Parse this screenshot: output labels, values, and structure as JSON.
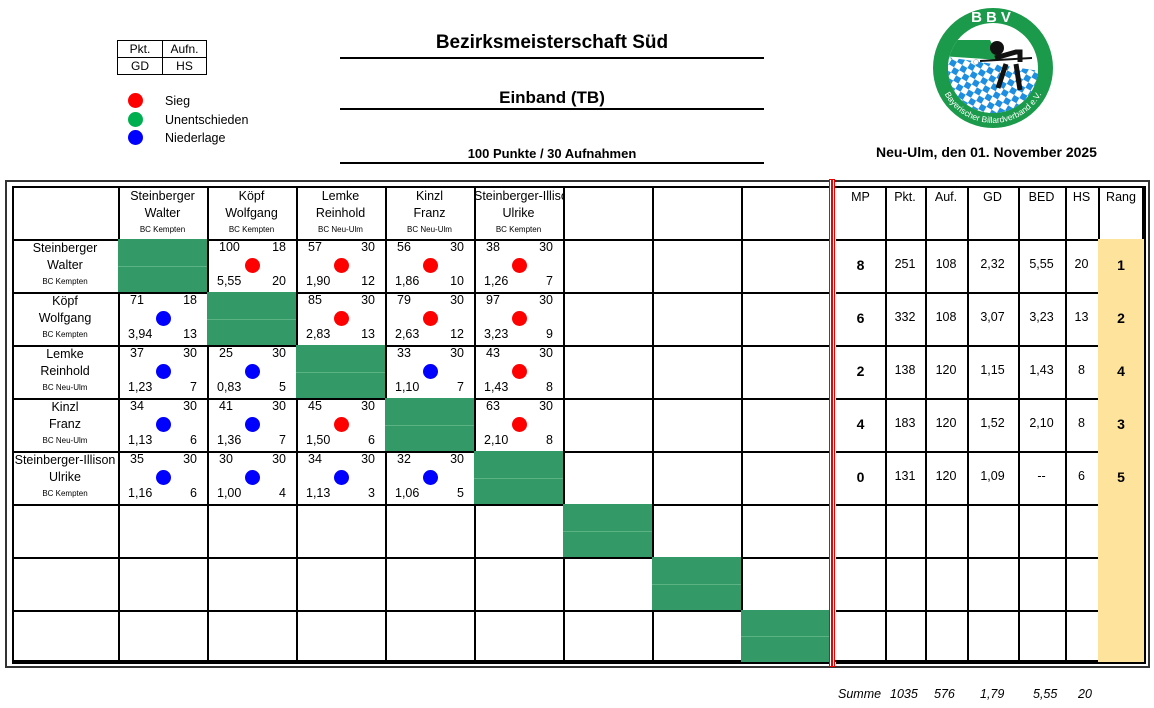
{
  "legend": {
    "box": {
      "r1c1": "Pkt.",
      "r1c2": "Aufn.",
      "r2c1": "GD",
      "r2c2": "HS"
    },
    "items": [
      {
        "label": "Sieg",
        "color": "#ff0000"
      },
      {
        "label": "Unentschieden",
        "color": "#00b050"
      },
      {
        "label": "Niederlage",
        "color": "#0000ff"
      }
    ]
  },
  "header": {
    "title": "Bezirksmeisterschaft Süd",
    "discipline": "Einband (TB)",
    "conditions": "100 Punkte / 30 Aufnahmen",
    "place_date": "Neu-Ulm, den 01. November 2025"
  },
  "logo": {
    "top_text": "BBV",
    "ring_text": "Bayerischer Billardverband e.V.",
    "green": "#1a9a4a",
    "blue": "#1e8ee0"
  },
  "colors": {
    "win": "#ff0000",
    "draw": "#00b050",
    "loss": "#0000ff",
    "diagonal": "#339966",
    "rank_bg": "#fde39c",
    "separator": "#ee0000"
  },
  "players": [
    {
      "first": "Steinberger",
      "last": "Walter",
      "club": "BC Kempten"
    },
    {
      "first": "Köpf",
      "last": "Wolfgang",
      "club": "BC Kempten"
    },
    {
      "first": "Lemke",
      "last": "Reinhold",
      "club": "BC Neu-Ulm"
    },
    {
      "first": "Kinzl",
      "last": "Franz",
      "club": "BC Neu-Ulm"
    },
    {
      "first": "Steinberger-Illison",
      "last": "Ulrike",
      "club": "BC Kempten"
    }
  ],
  "matches": [
    [
      null,
      {
        "pkt": "100",
        "auf": "18",
        "gd": "5,55",
        "hs": "20",
        "res": "win"
      },
      {
        "pkt": "57",
        "auf": "30",
        "gd": "1,90",
        "hs": "12",
        "res": "win"
      },
      {
        "pkt": "56",
        "auf": "30",
        "gd": "1,86",
        "hs": "10",
        "res": "win"
      },
      {
        "pkt": "38",
        "auf": "30",
        "gd": "1,26",
        "hs": "7",
        "res": "win"
      }
    ],
    [
      {
        "pkt": "71",
        "auf": "18",
        "gd": "3,94",
        "hs": "13",
        "res": "loss"
      },
      null,
      {
        "pkt": "85",
        "auf": "30",
        "gd": "2,83",
        "hs": "13",
        "res": "win"
      },
      {
        "pkt": "79",
        "auf": "30",
        "gd": "2,63",
        "hs": "12",
        "res": "win"
      },
      {
        "pkt": "97",
        "auf": "30",
        "gd": "3,23",
        "hs": "9",
        "res": "win"
      }
    ],
    [
      {
        "pkt": "37",
        "auf": "30",
        "gd": "1,23",
        "hs": "7",
        "res": "loss"
      },
      {
        "pkt": "25",
        "auf": "30",
        "gd": "0,83",
        "hs": "5",
        "res": "loss"
      },
      null,
      {
        "pkt": "33",
        "auf": "30",
        "gd": "1,10",
        "hs": "7",
        "res": "loss"
      },
      {
        "pkt": "43",
        "auf": "30",
        "gd": "1,43",
        "hs": "8",
        "res": "win"
      }
    ],
    [
      {
        "pkt": "34",
        "auf": "30",
        "gd": "1,13",
        "hs": "6",
        "res": "loss"
      },
      {
        "pkt": "41",
        "auf": "30",
        "gd": "1,36",
        "hs": "7",
        "res": "loss"
      },
      {
        "pkt": "45",
        "auf": "30",
        "gd": "1,50",
        "hs": "6",
        "res": "win"
      },
      null,
      {
        "pkt": "63",
        "auf": "30",
        "gd": "2,10",
        "hs": "8",
        "res": "win"
      }
    ],
    [
      {
        "pkt": "35",
        "auf": "30",
        "gd": "1,16",
        "hs": "6",
        "res": "loss"
      },
      {
        "pkt": "30",
        "auf": "30",
        "gd": "1,00",
        "hs": "4",
        "res": "loss"
      },
      {
        "pkt": "34",
        "auf": "30",
        "gd": "1,13",
        "hs": "3",
        "res": "loss"
      },
      {
        "pkt": "32",
        "auf": "30",
        "gd": "1,06",
        "hs": "5",
        "res": "loss"
      },
      null
    ]
  ],
  "stats_headers": [
    "MP",
    "Pkt.",
    "Auf.",
    "GD",
    "BED",
    "HS",
    "Rang"
  ],
  "stats": [
    {
      "mp": "8",
      "pkt": "251",
      "auf": "108",
      "gd": "2,32",
      "bed": "5,55",
      "hs": "20",
      "rang": "1"
    },
    {
      "mp": "6",
      "pkt": "332",
      "auf": "108",
      "gd": "3,07",
      "bed": "3,23",
      "hs": "13",
      "rang": "2"
    },
    {
      "mp": "2",
      "pkt": "138",
      "auf": "120",
      "gd": "1,15",
      "bed": "1,43",
      "hs": "8",
      "rang": "4"
    },
    {
      "mp": "4",
      "pkt": "183",
      "auf": "120",
      "gd": "1,52",
      "bed": "2,10",
      "hs": "8",
      "rang": "3"
    },
    {
      "mp": "0",
      "pkt": "131",
      "auf": "120",
      "gd": "1,09",
      "bed": "--",
      "hs": "6",
      "rang": "5"
    }
  ],
  "summary": {
    "label": "Summe",
    "pkt": "1035",
    "auf": "576",
    "gd": "1,79",
    "bed": "5,55",
    "hs": "20"
  }
}
